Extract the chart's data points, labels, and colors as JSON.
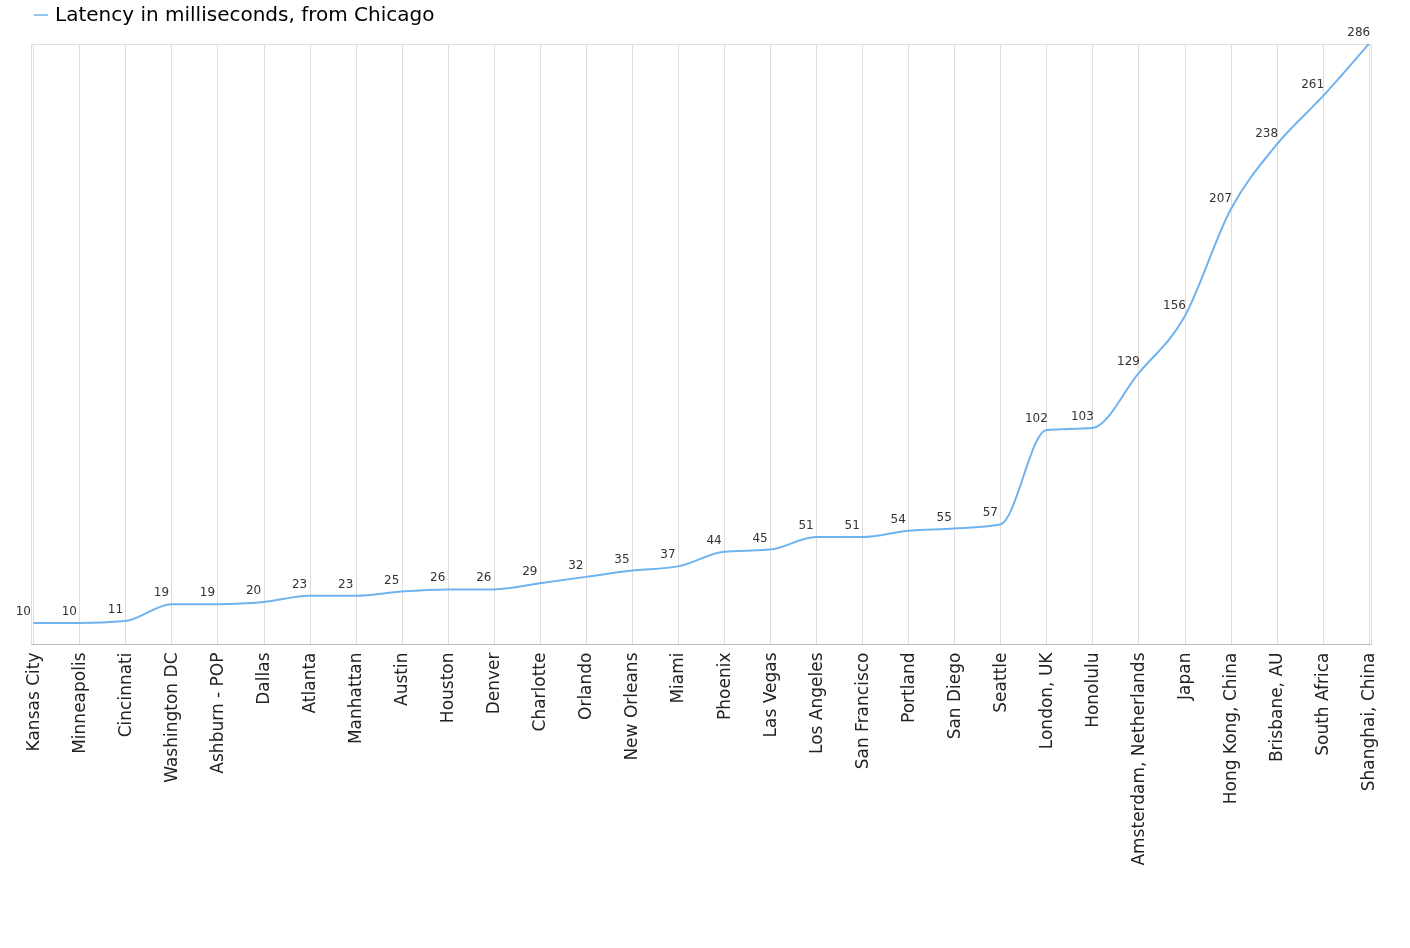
{
  "chart_data": {
    "type": "line",
    "categories": [
      "Kansas City",
      "Minneapolis",
      "Cincinnati",
      "Washington DC",
      "Ashburn - POP",
      "Dallas",
      "Atlanta",
      "Manhattan",
      "Austin",
      "Houston",
      "Denver",
      "Charlotte",
      "Orlando",
      "New Orleans",
      "Miami",
      "Phoenix",
      "Las Vegas",
      "Los Angeles",
      "San Francisco",
      "Portland",
      "San Diego",
      "Seattle",
      "London, UK",
      "Honolulu",
      "Amsterdam, Netherlands",
      "Japan",
      "Hong Kong, China",
      "Brisbane, AU",
      "South Africa",
      "Shanghai, China"
    ],
    "series": [
      {
        "name": "Latency in milliseconds, from Chicago",
        "color": "#6fb3ee",
        "values": [
          10,
          10,
          11,
          19,
          19,
          20,
          23,
          23,
          25,
          26,
          26,
          29,
          32,
          35,
          37,
          44,
          45,
          51,
          51,
          54,
          55,
          57,
          102,
          103,
          129,
          156,
          207,
          238,
          261,
          286
        ]
      }
    ],
    "data_labels": true,
    "grid": "x",
    "legend": "top",
    "marker": "none",
    "line_style": "solid"
  }
}
